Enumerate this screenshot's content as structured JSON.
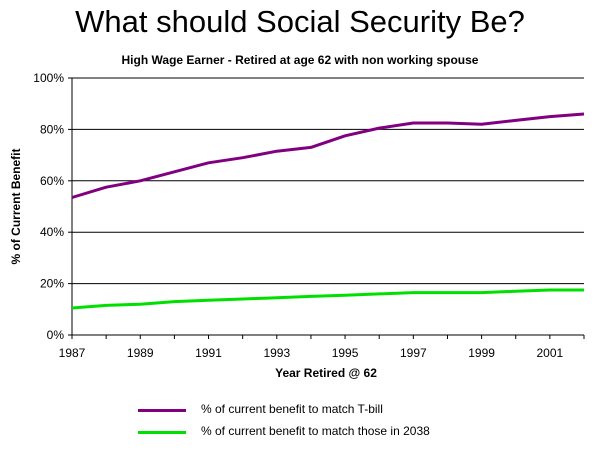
{
  "chart_data": {
    "type": "line",
    "title": "What should Social Security Be?",
    "subtitle": "High Wage Earner - Retired at age 62 with non working spouse",
    "xlabel": "Year Retired @ 62",
    "ylabel": "% of Current Benefit",
    "xlim": [
      1987,
      2002
    ],
    "ylim": [
      0,
      100
    ],
    "x_ticks": [
      "1987",
      "1989",
      "1991",
      "1993",
      "1995",
      "1997",
      "1999",
      "2001"
    ],
    "y_ticks": [
      "0%",
      "20%",
      "40%",
      "60%",
      "80%",
      "100%"
    ],
    "grid": "horizontal",
    "legend_position": "bottom",
    "x": [
      1987,
      1988,
      1989,
      1990,
      1991,
      1992,
      1993,
      1994,
      1995,
      1996,
      1997,
      1998,
      1999,
      2000,
      2001,
      2002
    ],
    "series": [
      {
        "name": "% of current benefit to match T-bill",
        "color": "#800080",
        "values": [
          53.5,
          57.5,
          60,
          63.5,
          67,
          69,
          71.5,
          73,
          77.5,
          80.5,
          82.5,
          82.5,
          82,
          83.5,
          85,
          86
        ]
      },
      {
        "name": "% of current benefit to match those in 2038",
        "color": "#00e000",
        "values": [
          10.5,
          11.5,
          12,
          13,
          13.5,
          14,
          14.5,
          15,
          15.5,
          16,
          16.5,
          16.5,
          16.5,
          17,
          17.5,
          17.5
        ]
      }
    ]
  }
}
